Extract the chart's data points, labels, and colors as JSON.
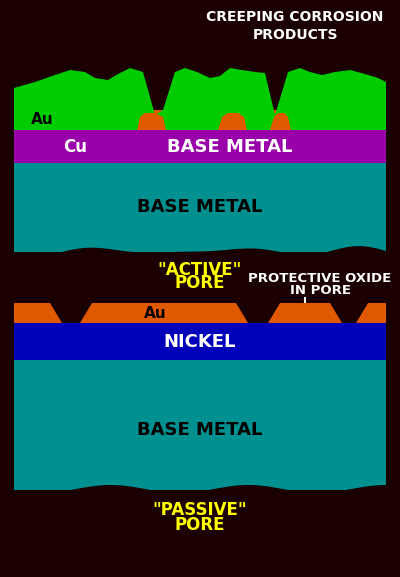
{
  "bg_color": "#1a0000",
  "teal_color": "#009090",
  "orange_color": "#e05800",
  "purple_color": "#9900aa",
  "green_color": "#00cc00",
  "blue_color": "#0000bb",
  "yellow_color": "#ffff00",
  "white_color": "#ffffff",
  "black_color": "#000000",
  "top_title_line1": "CREEPING CORROSION",
  "top_title_line2": "PRODUCTS",
  "top_label_au": "Au",
  "top_label_cu": "Cu",
  "top_label_base_cu": "BASE METAL",
  "top_label_base": "BASE METAL",
  "top_pore_line1": "\"ACTIVE\"",
  "top_pore_line2": "PORE",
  "bot_annot_line1": "PROTECTIVE OXIDE",
  "bot_annot_line2": "IN PORE",
  "bot_label_au": "Au",
  "bot_label_nickel": "NICKEL",
  "bot_label_base": "BASE METAL",
  "bot_pore_line1": "\"PASSIVE\"",
  "bot_pore_line2": "PORE"
}
